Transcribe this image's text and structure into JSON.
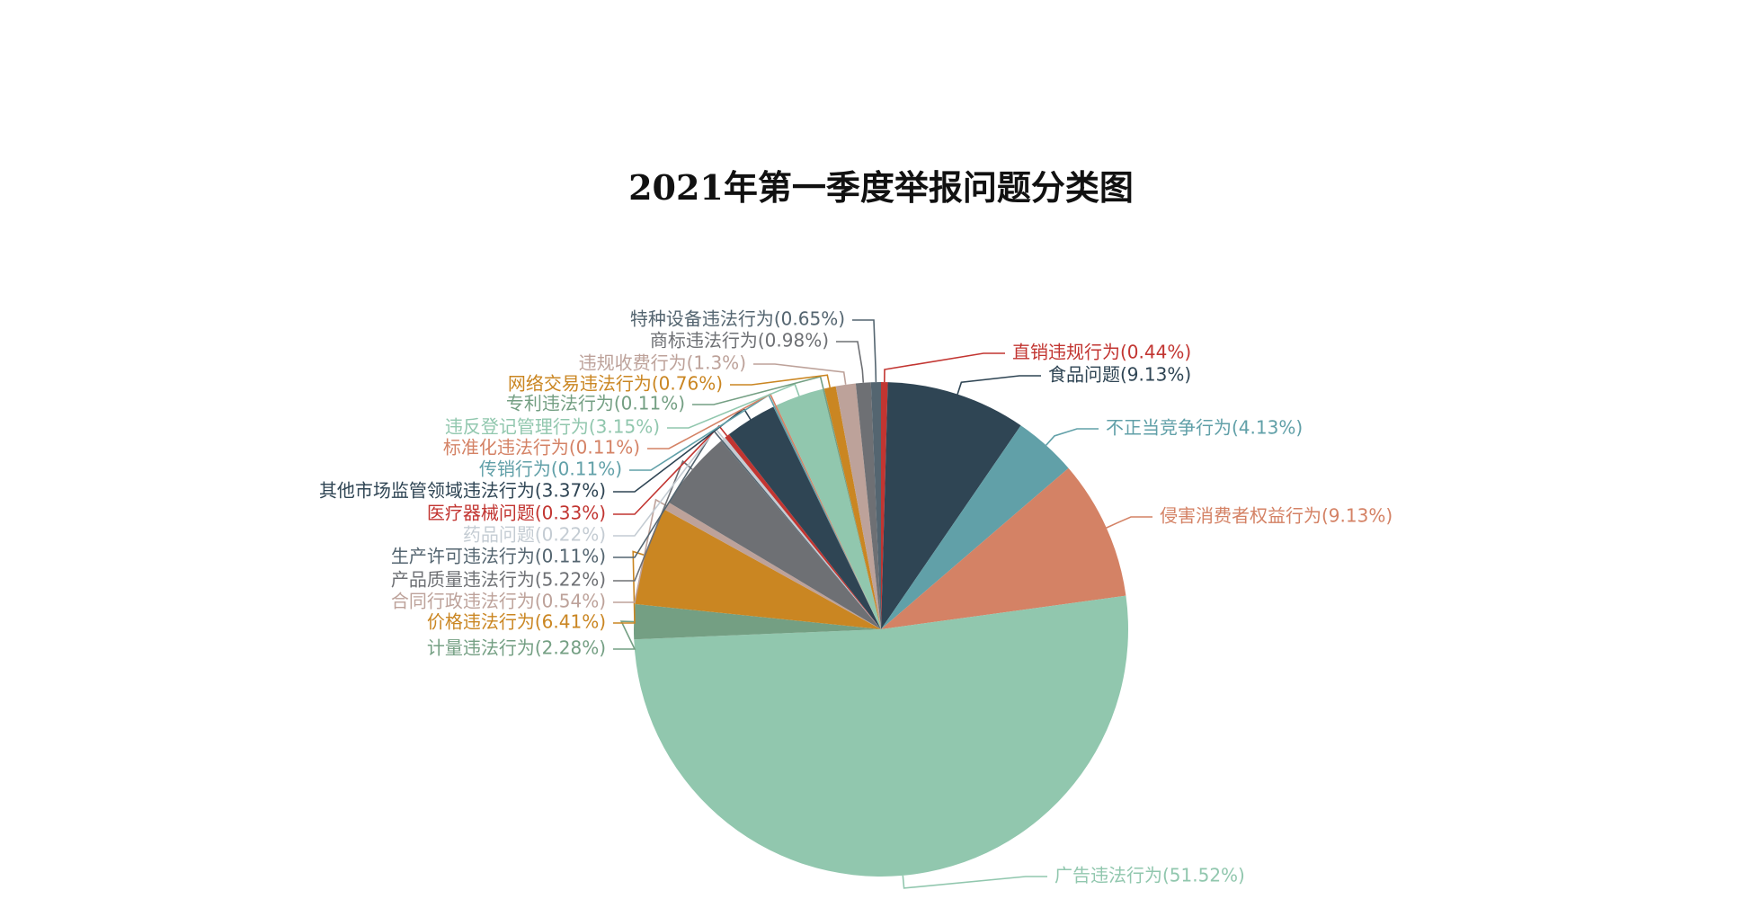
{
  "chart_data": {
    "type": "pie",
    "title": "2021年第一季度举报问题分类图",
    "series": [
      {
        "name": "直销违规行为",
        "label": "直销违规行为(0.44%)",
        "value": 0.44,
        "color": "#c23531"
      },
      {
        "name": "食品问题",
        "label": "食品问题(9.13%)",
        "value": 9.13,
        "color": "#2f4554"
      },
      {
        "name": "不正当竞争行为",
        "label": "不正当竞争行为(4.13%)",
        "value": 4.13,
        "color": "#61a0a8"
      },
      {
        "name": "侵害消费者权益行为",
        "label": "侵害消费者权益行为(9.13%)",
        "value": 9.13,
        "color": "#d48265"
      },
      {
        "name": "广告违法行为",
        "label": "广告违法行为(51.52%)",
        "value": 51.52,
        "color": "#91c7ae"
      },
      {
        "name": "计量违法行为",
        "label": "计量违法行为(2.28%)",
        "value": 2.28,
        "color": "#749f83"
      },
      {
        "name": "价格违法行为",
        "label": "价格违法行为(6.41%)",
        "value": 6.41,
        "color": "#ca8622"
      },
      {
        "name": "合同行政违法行为",
        "label": "合同行政违法行为(0.54%)",
        "value": 0.54,
        "color": "#bda29a"
      },
      {
        "name": "产品质量违法行为",
        "label": "产品质量违法行为(5.22%)",
        "value": 5.22,
        "color": "#6e7074"
      },
      {
        "name": "生产许可违法行为",
        "label": "生产许可违法行为(0.11%)",
        "value": 0.11,
        "color": "#546570"
      },
      {
        "name": "药品问题",
        "label": "药品问题(0.22%)",
        "value": 0.22,
        "color": "#c4ccd3"
      },
      {
        "name": "医疗器械问题",
        "label": "医疗器械问题(0.33%)",
        "value": 0.33,
        "color": "#c23531"
      },
      {
        "name": "其他市场监管领域违法行为",
        "label": "其他市场监管领域违法行为(3.37%)",
        "value": 3.37,
        "color": "#2f4554"
      },
      {
        "name": "传销行为",
        "label": "传销行为(0.11%)",
        "value": 0.11,
        "color": "#61a0a8"
      },
      {
        "name": "标准化违法行为",
        "label": "标准化违法行为(0.11%)",
        "value": 0.11,
        "color": "#d48265"
      },
      {
        "name": "违反登记管理行为",
        "label": "违反登记管理行为(3.15%)",
        "value": 3.15,
        "color": "#91c7ae"
      },
      {
        "name": "专利违法行为",
        "label": "专利违法行为(0.11%)",
        "value": 0.11,
        "color": "#749f83"
      },
      {
        "name": "网络交易违法行为",
        "label": "网络交易违法行为(0.76%)",
        "value": 0.76,
        "color": "#ca8622"
      },
      {
        "name": "违规收费行为",
        "label": "违规收费行为(1.3%)",
        "value": 1.3,
        "color": "#bda29a"
      },
      {
        "name": "商标违法行为",
        "label": "商标违法行为(0.98%)",
        "value": 0.98,
        "color": "#6e7074"
      },
      {
        "name": "特种设备违法行为",
        "label": "特种设备违法行为(0.65%)",
        "value": 0.65,
        "color": "#546570"
      }
    ]
  }
}
